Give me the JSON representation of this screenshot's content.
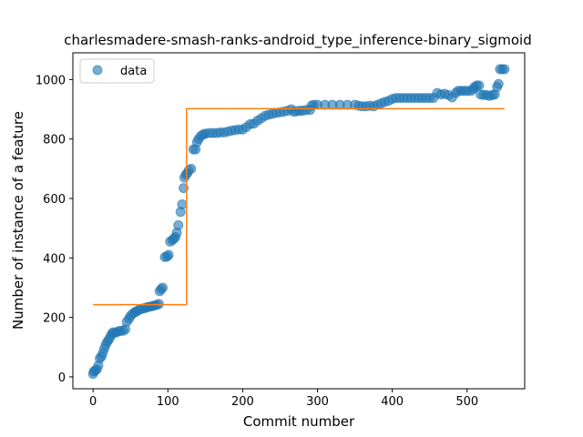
{
  "chart_data": {
    "type": "scatter",
    "title": "charlesmadere-smash-ranks-android_type_inference-binary_sigmoid",
    "xlabel": "Commit number",
    "ylabel": "Number of instance of a feature",
    "xlim": [
      -27,
      577
    ],
    "ylim": [
      -40,
      1090
    ],
    "xticks": [
      0,
      100,
      200,
      300,
      400,
      500
    ],
    "yticks": [
      0,
      200,
      400,
      600,
      800,
      1000
    ],
    "grid": false,
    "legend": {
      "position": "top-left",
      "entries": [
        "data"
      ]
    },
    "colors": {
      "data": "#1f77b4",
      "fit": "#ff7f0e"
    },
    "series": [
      {
        "name": "data",
        "kind": "scatter",
        "points": [
          [
            0,
            10
          ],
          [
            1,
            18
          ],
          [
            3,
            22
          ],
          [
            5,
            25
          ],
          [
            7,
            38
          ],
          [
            9,
            62
          ],
          [
            11,
            68
          ],
          [
            13,
            80
          ],
          [
            15,
            95
          ],
          [
            17,
            108
          ],
          [
            19,
            118
          ],
          [
            21,
            125
          ],
          [
            23,
            135
          ],
          [
            25,
            145
          ],
          [
            27,
            150
          ],
          [
            30,
            148
          ],
          [
            33,
            152
          ],
          [
            36,
            155
          ],
          [
            40,
            155
          ],
          [
            43,
            160
          ],
          [
            45,
            185
          ],
          [
            48,
            195
          ],
          [
            50,
            205
          ],
          [
            53,
            212
          ],
          [
            56,
            218
          ],
          [
            58,
            220
          ],
          [
            61,
            225
          ],
          [
            64,
            228
          ],
          [
            67,
            230
          ],
          [
            70,
            232
          ],
          [
            73,
            235
          ],
          [
            76,
            236
          ],
          [
            79,
            238
          ],
          [
            82,
            240
          ],
          [
            85,
            242
          ],
          [
            88,
            245
          ],
          [
            89,
            288
          ],
          [
            91,
            295
          ],
          [
            93,
            300
          ],
          [
            96,
            403
          ],
          [
            99,
            405
          ],
          [
            101,
            410
          ],
          [
            103,
            455
          ],
          [
            106,
            460
          ],
          [
            108,
            465
          ],
          [
            110,
            470
          ],
          [
            112,
            485
          ],
          [
            114,
            510
          ],
          [
            117,
            555
          ],
          [
            119,
            580
          ],
          [
            121,
            635
          ],
          [
            122,
            670
          ],
          [
            124,
            680
          ],
          [
            126,
            685
          ],
          [
            128,
            695
          ],
          [
            131,
            700
          ],
          [
            134,
            765
          ],
          [
            137,
            765
          ],
          [
            139,
            790
          ],
          [
            141,
            800
          ],
          [
            144,
            810
          ],
          [
            147,
            815
          ],
          [
            150,
            818
          ],
          [
            155,
            820
          ],
          [
            160,
            820
          ],
          [
            165,
            820
          ],
          [
            170,
            822
          ],
          [
            175,
            822
          ],
          [
            180,
            825
          ],
          [
            185,
            828
          ],
          [
            190,
            830
          ],
          [
            195,
            832
          ],
          [
            200,
            832
          ],
          [
            205,
            840
          ],
          [
            210,
            850
          ],
          [
            215,
            852
          ],
          [
            220,
            862
          ],
          [
            225,
            870
          ],
          [
            230,
            878
          ],
          [
            235,
            882
          ],
          [
            240,
            885
          ],
          [
            245,
            888
          ],
          [
            250,
            890
          ],
          [
            255,
            892
          ],
          [
            260,
            895
          ],
          [
            265,
            900
          ],
          [
            268,
            892
          ],
          [
            272,
            893
          ],
          [
            276,
            895
          ],
          [
            280,
            895
          ],
          [
            285,
            898
          ],
          [
            290,
            898
          ],
          [
            292,
            912
          ],
          [
            295,
            915
          ],
          [
            300,
            915
          ],
          [
            310,
            915
          ],
          [
            320,
            915
          ],
          [
            330,
            915
          ],
          [
            340,
            915
          ],
          [
            350,
            915
          ],
          [
            355,
            912
          ],
          [
            360,
            910
          ],
          [
            365,
            910
          ],
          [
            370,
            912
          ],
          [
            375,
            910
          ],
          [
            380,
            915
          ],
          [
            385,
            920
          ],
          [
            390,
            925
          ],
          [
            395,
            928
          ],
          [
            400,
            935
          ],
          [
            405,
            938
          ],
          [
            410,
            938
          ],
          [
            415,
            938
          ],
          [
            420,
            938
          ],
          [
            425,
            938
          ],
          [
            430,
            938
          ],
          [
            435,
            938
          ],
          [
            440,
            938
          ],
          [
            445,
            938
          ],
          [
            450,
            938
          ],
          [
            455,
            938
          ],
          [
            460,
            955
          ],
          [
            465,
            950
          ],
          [
            470,
            952
          ],
          [
            475,
            948
          ],
          [
            480,
            940
          ],
          [
            485,
            955
          ],
          [
            488,
            962
          ],
          [
            492,
            962
          ],
          [
            496,
            962
          ],
          [
            500,
            962
          ],
          [
            505,
            962
          ],
          [
            508,
            968
          ],
          [
            510,
            975
          ],
          [
            513,
            980
          ],
          [
            516,
            980
          ],
          [
            518,
            950
          ],
          [
            522,
            948
          ],
          [
            526,
            948
          ],
          [
            530,
            945
          ],
          [
            534,
            948
          ],
          [
            537,
            950
          ],
          [
            540,
            975
          ],
          [
            542,
            985
          ],
          [
            544,
            1035
          ],
          [
            547,
            1035
          ],
          [
            550,
            1035
          ]
        ]
      },
      {
        "name": "",
        "kind": "step-line",
        "points": [
          [
            0,
            243
          ],
          [
            125,
            243
          ],
          [
            125,
            902
          ],
          [
            550,
            902
          ]
        ]
      }
    ]
  }
}
